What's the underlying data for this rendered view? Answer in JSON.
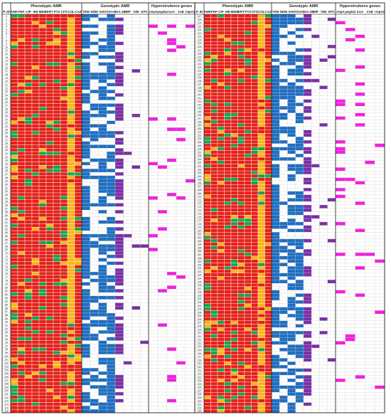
{
  "chart_data": {
    "type": "heatmap",
    "group_labels": [
      "Phenotypic AMR",
      "Genotypic AMR",
      "Hypervirulence genes"
    ],
    "id_header": "P. ID",
    "phenotypic_columns": [
      "AMK",
      "FEP",
      "CIP",
      "IMI",
      "MEM",
      "ERT",
      "PTZ",
      "CFS",
      "COL",
      "CAZ"
    ],
    "genotypic_columns": [
      "TEM",
      "NDM",
      "SHV",
      "OXA-1",
      "OXA-48",
      "IMP",
      "VIM",
      "KPC"
    ],
    "hypervirulence_columns": [
      "rmpA",
      "peg344",
      "iucA",
      "iroB",
      "rmpA2"
    ],
    "left_panel": {
      "first_id": 1,
      "last_id": 116
    },
    "right_panel": {
      "first_id": 117,
      "last_id": 233
    },
    "legend_colors": {
      "resistant": "#e32119",
      "intermediate": "#f9b418",
      "susceptible": "#17a54c",
      "blaTEM_NDM_SHV_OXA1_present": "#1f6fc2",
      "OXA48_IMP_VIM_KPC_present": "#7b2fa8",
      "hypervirulence_gene_present": "#f41fe2",
      "absent": "#ffffff"
    }
  }
}
